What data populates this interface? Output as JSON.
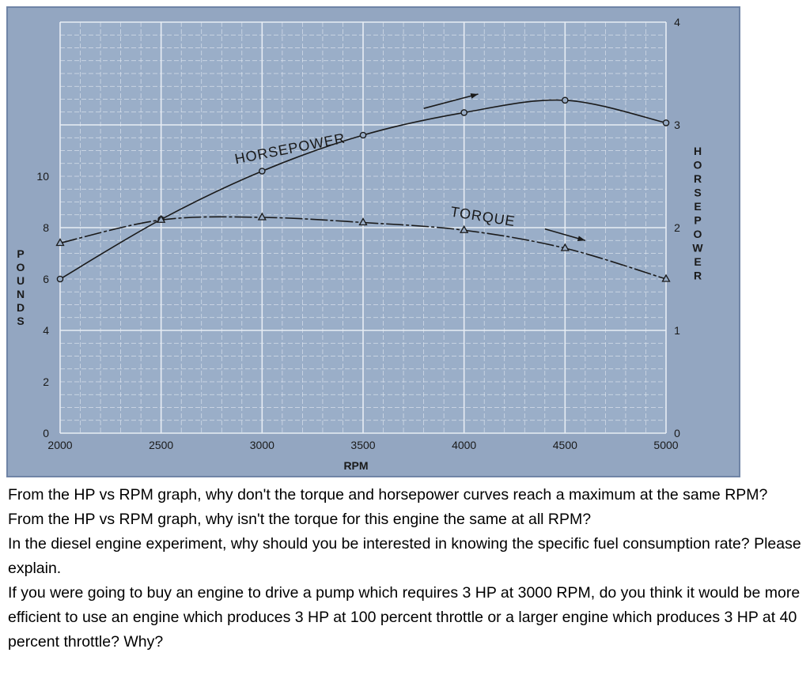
{
  "chart_data": {
    "type": "line",
    "title": "",
    "xlabel": "RPM",
    "ylabel_left": "POUNDS",
    "ylabel_right": "HORSEPOWER",
    "xlim": [
      2000,
      5000
    ],
    "ylim_left": [
      0,
      16
    ],
    "ylim_right": [
      0,
      4
    ],
    "x_ticks": [
      "2000",
      "2500",
      "3000",
      "3500",
      "4000",
      "4500",
      "5000"
    ],
    "y_left_ticks": [
      "0",
      "2",
      "4",
      "6",
      "8",
      "10"
    ],
    "y_right_ticks": [
      "0",
      "1",
      "2",
      "3",
      "4"
    ],
    "grid": true,
    "series": [
      {
        "name": "HORSEPOWER",
        "axis": "right",
        "marker": "circle",
        "x": [
          2000,
          2500,
          3000,
          3500,
          4000,
          4500,
          5000
        ],
        "y": [
          1.5,
          2.08,
          2.55,
          2.9,
          3.12,
          3.24,
          3.02
        ]
      },
      {
        "name": "TORQUE",
        "axis": "left",
        "marker": "triangle",
        "x": [
          2000,
          2500,
          3000,
          3500,
          4000,
          4500,
          5000
        ],
        "y": [
          7.4,
          8.3,
          8.4,
          8.2,
          7.9,
          7.2,
          6.0
        ]
      }
    ]
  },
  "questions": [
    "From the HP vs RPM graph, why don't the torque and horsepower curves reach a maximum at the same RPM?",
    "From the HP vs RPM graph, why isn't the torque for this engine the same at all RPM?",
    "In the diesel engine experiment, why should you be interested in knowing the specific fuel consumption rate? Please explain.",
    "If you were going to buy an engine to drive a pump which requires 3 HP at 3000 RPM, do you think it would be more efficient to use an engine which produces 3 HP at 100 percent throttle or a larger engine which produces 3 HP at 40 percent throttle? Why?"
  ],
  "colors": {
    "background": "#93a6c1",
    "grid": "#e8edf4",
    "curve": "#1a1a1a"
  }
}
